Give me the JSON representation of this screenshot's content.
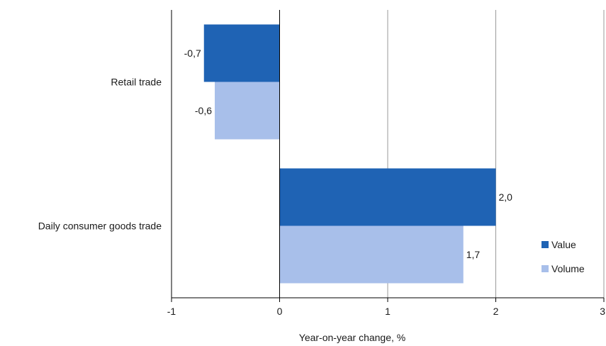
{
  "chart_data": {
    "type": "bar",
    "orientation": "horizontal",
    "categories": [
      "Retail trade",
      "Daily consumer goods trade"
    ],
    "series": [
      {
        "name": "Value",
        "color": "#1f63b4",
        "values": [
          -0.7,
          2.0
        ],
        "labels": [
          "-0,7",
          "2,0"
        ]
      },
      {
        "name": "Volume",
        "color": "#a8bfea",
        "values": [
          -0.6,
          1.7
        ],
        "labels": [
          "-0,6",
          "1,7"
        ]
      }
    ],
    "xlabel": "Year-on-year change, %",
    "xlim": [
      -1,
      3
    ],
    "xticks": [
      -1,
      0,
      1,
      2,
      3
    ],
    "xtick_labels": [
      "-1",
      "0",
      "1",
      "2",
      "3"
    ],
    "grid": "vertical",
    "legend_position": "bottom-right"
  }
}
